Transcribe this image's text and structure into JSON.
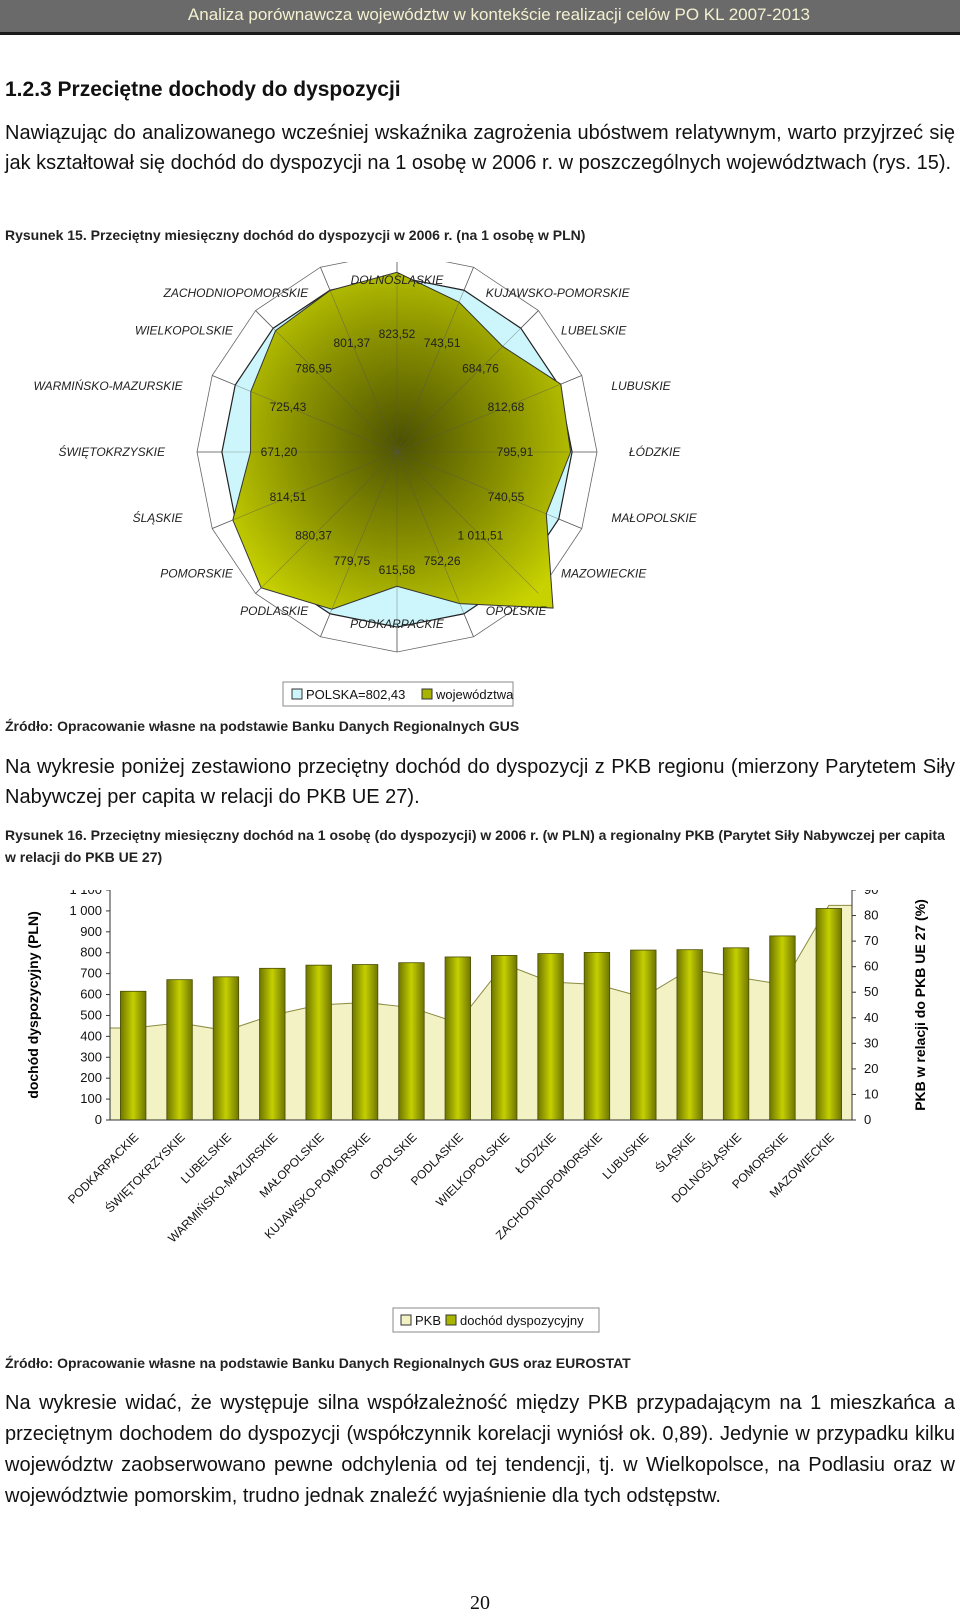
{
  "header": {
    "title": "Analiza porównawcza województw w kontekście realizacji celów PO KL 2007-2013"
  },
  "section_title": "1.2.3 Przeciętne dochody do dyspozycji",
  "intro_paragraph": "Nawiązując do analizowanego wcześniej wskaźnika zagrożenia ubóstwem relatywnym, warto przyjrzeć się jak kształtował się dochód do dyspozycji na 1 osobę w 2006 r. w poszczególnych województwach (rys. 15).",
  "fig15_caption": "Rysunek 15. Przeciętny miesięczny dochód do dyspozycji w 2006 r. (na 1 osobę w PLN)",
  "fig15_source": "Źródło: Opracowanie własne na podstawie Banku Danych Regionalnych GUS",
  "middle_paragraph": "Na wykresie poniżej zestawiono przeciętny dochód do dyspozycji z PKB regionu (mierzony Parytetem Siły Nabywczej per capita w relacji do PKB UE 27).",
  "fig16_caption": "Rysunek 16. Przeciętny miesięczny dochód na 1 osobę (do dyspozycji) w 2006 r. (w PLN) a regionalny PKB (Parytet Siły Nabywczej per capita w relacji do PKB UE 27)",
  "fig16_source": "Źródło: Opracowanie własne na podstawie Banku Danych Regionalnych GUS oraz EUROSTAT",
  "final_paragraph": "Na wykresie widać, że występuje silna współzależność między PKB przypadającym na 1 mieszkańca a przeciętnym dochodem do dyspozycji (współczynnik korelacji wyniósł ok. 0,89). Jedynie w przypadku kilku województw zaobserwowano pewne odchylenia od tej tendencji, tj. w Wielkopolsce, na Podlasiu oraz w województwie pomorskim, trudno jednak znaleźć wyjaśnienie dla tych odstępstw.",
  "page_number": "20",
  "colors": {
    "header_bg": "#6a6a6a",
    "header_text": "#f4f0d0",
    "bar_fill": "#a9b400",
    "area_fill": "#f2f2c4",
    "radar_fill": "#ccf6fc"
  },
  "chart_data": [
    {
      "type": "radar",
      "categories": [
        "DOLNOŚLĄSKIE",
        "KUJAWSKO-POMORSKIE",
        "LUBELSKIE",
        "LUBUSKIE",
        "ŁÓDZKIE",
        "MAŁOPOLSKIE",
        "MAZOWIECKIE",
        "OPOLSKIE",
        "PODKARPACKIE",
        "PODLASKIE",
        "POMORSKIE",
        "ŚLĄSKIE",
        "ŚWIĘTOKRZYSKIE",
        "WARMIŃSKO-MAZURSKIE",
        "WIELKOPOLSKIE",
        "ZACHODNIOPOMORSKIE"
      ],
      "value_labels": [
        "823,52",
        "743,51",
        "684,76",
        "812,68",
        "795,91",
        "740,55",
        "1 011,51",
        "752,26",
        "615,58",
        "779,75",
        "880,37",
        "814,51",
        "671,20",
        "725,43",
        "786,95",
        "801,37"
      ],
      "series": [
        {
          "name": "województwa",
          "values": [
            823.52,
            743.51,
            684.76,
            812.68,
            795.91,
            740.55,
            1011.51,
            752.26,
            615.58,
            779.75,
            880.37,
            814.51,
            671.2,
            725.43,
            786.95,
            801.37
          ]
        },
        {
          "name": "POLSKA=802,43",
          "values": [
            802.43,
            802.43,
            802.43,
            802.43,
            802.43,
            802.43,
            802.43,
            802.43,
            802.43,
            802.43,
            802.43,
            802.43,
            802.43,
            802.43,
            802.43,
            802.43
          ]
        }
      ],
      "legend": [
        "POLSKA=802,43",
        "województwa"
      ],
      "legend_position": "bottom",
      "grid": true
    },
    {
      "type": "bar",
      "categories": [
        "PODKARPACKIE",
        "ŚWIĘTOKRZYSKIE",
        "LUBELSKIE",
        "WARMIŃSKO-MAZURSKIE",
        "MAŁOPOLSKIE",
        "KUJAWSKO-POMORSKIE",
        "OPOLSKIE",
        "PODLASKIE",
        "WIELKOPOLSKIE",
        "ŁÓDZKIE",
        "ZACHODNIOPOMORSKIE",
        "LUBUSKIE",
        "ŚLĄSKIE",
        "DOLNOŚLĄSKIE",
        "POMORSKIE",
        "MAZOWIECKIE"
      ],
      "series": [
        {
          "name": "dochód dyspozycyjny",
          "axis": "left",
          "type": "bar",
          "values": [
            615.58,
            671.2,
            684.76,
            725.43,
            740.55,
            743.51,
            752.26,
            779.75,
            786.95,
            795.91,
            801.37,
            812.68,
            814.51,
            823.52,
            880.37,
            1011.51
          ]
        },
        {
          "name": "PKB",
          "axis": "right",
          "type": "area",
          "values": [
            36,
            38,
            35,
            41,
            45,
            46,
            44,
            38,
            61,
            54,
            53,
            48,
            59,
            56,
            53,
            84
          ]
        }
      ],
      "ylabel": "dochód dyspozycyjny (PLN)",
      "ylabel_right": "PKB w relacji do PKB UE 27 (%)",
      "ylim": [
        0,
        1100
      ],
      "ylim_right": [
        0,
        90
      ],
      "yticks_left": [
        "0",
        "100",
        "200",
        "300",
        "400",
        "500",
        "600",
        "700",
        "800",
        "900",
        "1 000",
        "1 100"
      ],
      "yticks_right": [
        "0",
        "10",
        "20",
        "30",
        "40",
        "50",
        "60",
        "70",
        "80",
        "90"
      ],
      "legend": [
        "PKB",
        "dochód dyspozycyjny"
      ],
      "legend_position": "bottom",
      "grid": false
    }
  ]
}
